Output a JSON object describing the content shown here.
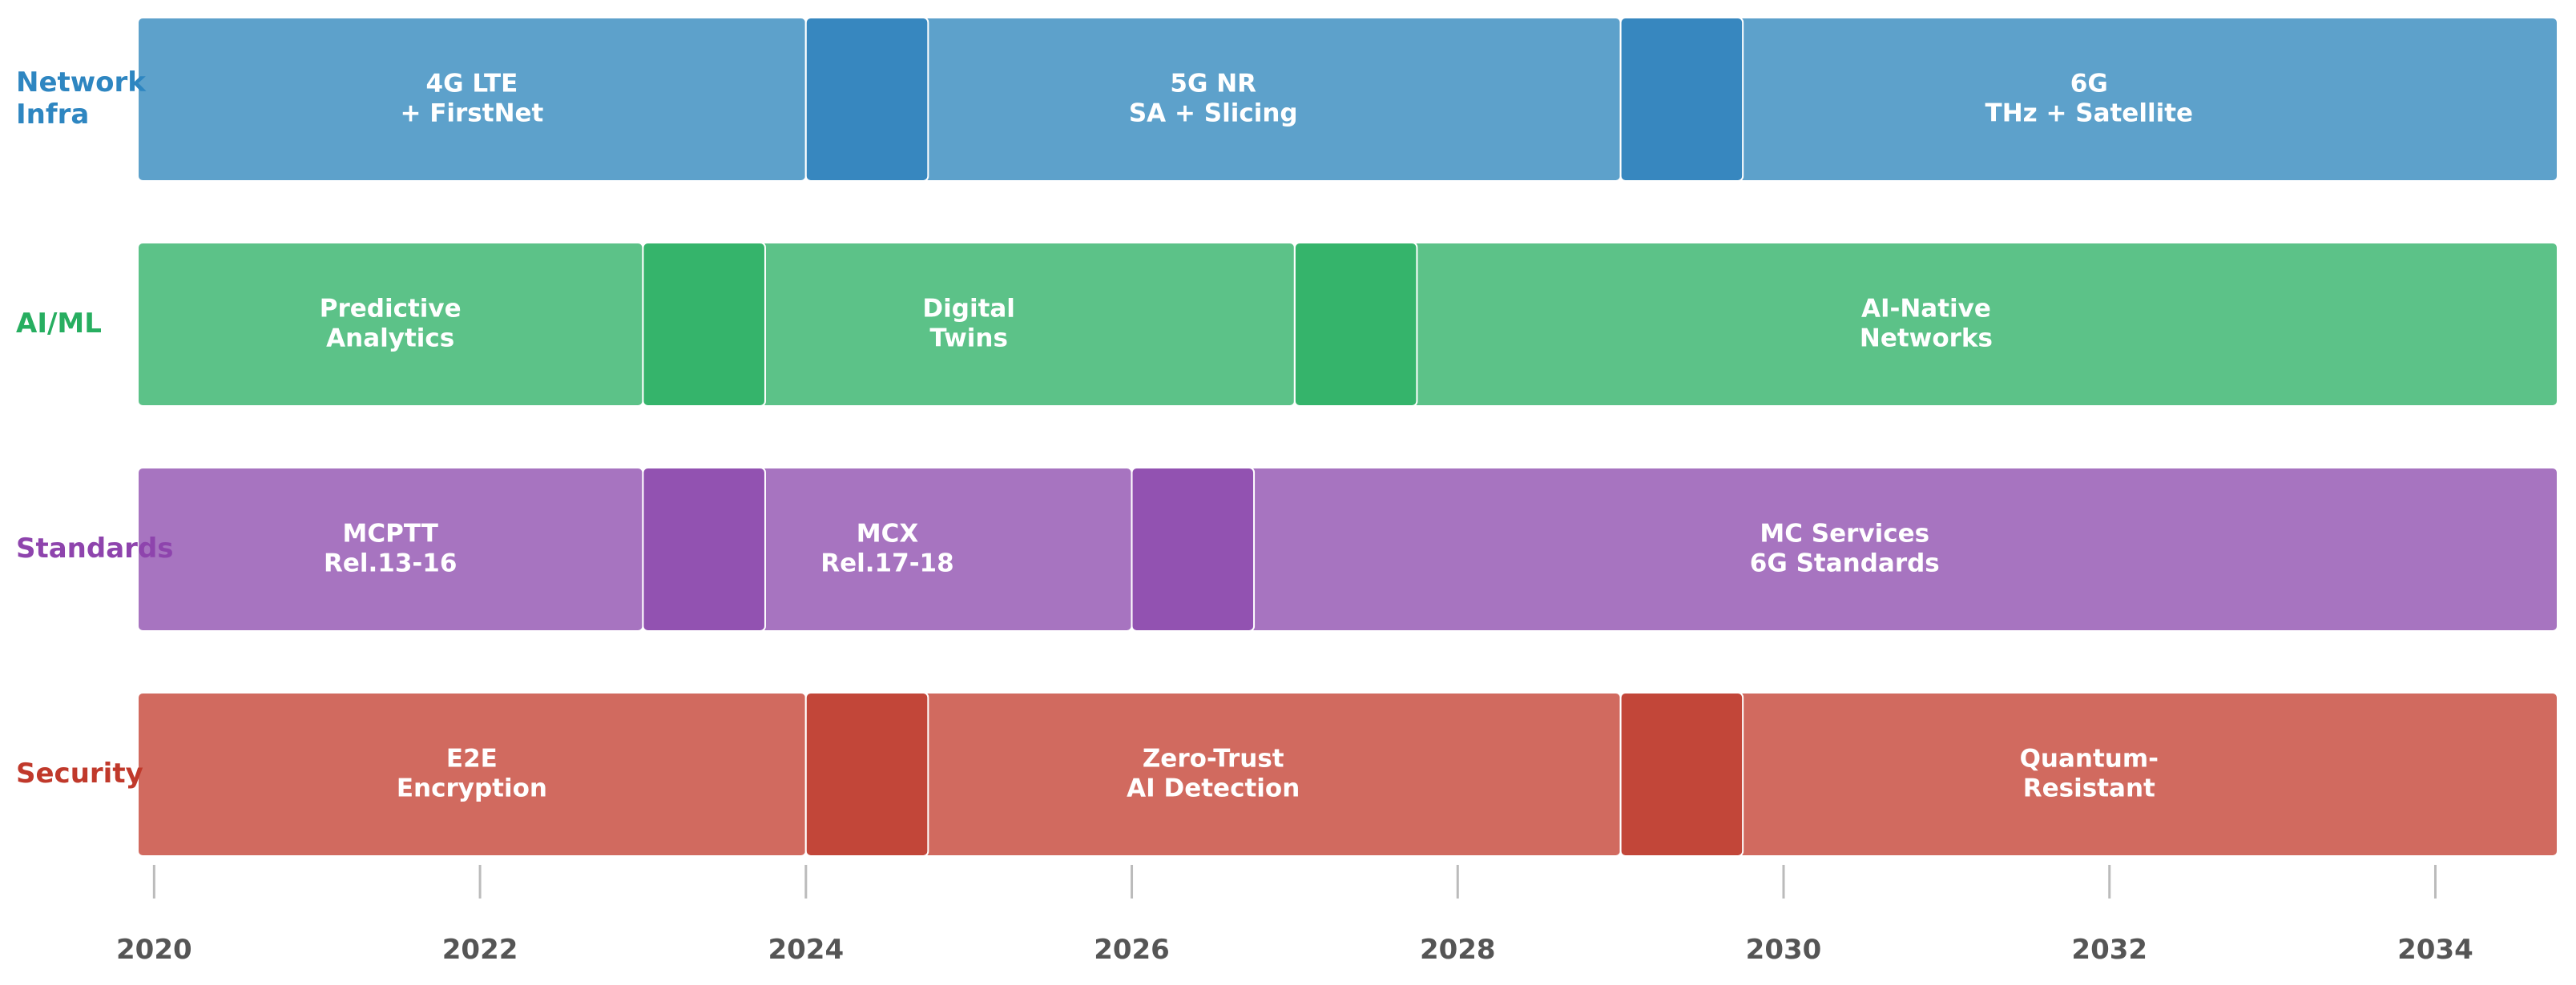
{
  "chart_data": {
    "type": "gantt",
    "title": "",
    "xlabel": "",
    "ylabel": "",
    "xlim": [
      2019.9,
      2034.75
    ],
    "x_ticks": [
      "2020",
      "2022",
      "2024",
      "2026",
      "2028",
      "2030",
      "2032",
      "2034"
    ],
    "grid": false,
    "legend": "none",
    "lanes": [
      {
        "label": "Network\nInfra",
        "color": "#5DA1CB",
        "overlap_color": "#3787BF",
        "label_color": "#2E86C1",
        "segments": [
          {
            "label": "4G LTE\n+ FirstNet",
            "start": 2019.9,
            "end": 2024.0
          },
          {
            "label": "5G NR\nSA + Slicing",
            "start": 2024.0,
            "end": 2029.0
          },
          {
            "label": "6G\nTHz + Satellite",
            "start": 2029.0,
            "end": 2034.75
          }
        ],
        "transitions": [
          {
            "start": 2024.0,
            "end": 2024.75
          },
          {
            "start": 2029.0,
            "end": 2029.75
          }
        ]
      },
      {
        "label": "AI/ML",
        "color": "#5CC288",
        "overlap_color": "#35B46B",
        "label_color": "#27AE60",
        "segments": [
          {
            "label": "Predictive\nAnalytics",
            "start": 2019.9,
            "end": 2023.0
          },
          {
            "label": "Digital\nTwins",
            "start": 2023.0,
            "end": 2027.0
          },
          {
            "label": "AI-Native\nNetworks",
            "start": 2027.0,
            "end": 2034.75
          }
        ],
        "transitions": [
          {
            "start": 2023.0,
            "end": 2023.75
          },
          {
            "start": 2027.0,
            "end": 2027.75
          }
        ]
      },
      {
        "label": "Standards",
        "color": "#A774C0",
        "overlap_color": "#9252B1",
        "label_color": "#8E44AD",
        "segments": [
          {
            "label": "MCPTT\nRel.13-16",
            "start": 2019.9,
            "end": 2023.0
          },
          {
            "label": "MCX\nRel.17-18",
            "start": 2023.0,
            "end": 2026.0
          },
          {
            "label": "MC Services\n6G Standards",
            "start": 2026.0,
            "end": 2034.75
          }
        ],
        "transitions": [
          {
            "start": 2023.0,
            "end": 2023.75
          },
          {
            "start": 2026.0,
            "end": 2026.75
          }
        ]
      },
      {
        "label": "Security",
        "color": "#D16A5F",
        "overlap_color": "#C24639",
        "label_color": "#C0392B",
        "segments": [
          {
            "label": "E2E\nEncryption",
            "start": 2019.9,
            "end": 2024.0
          },
          {
            "label": "Zero-Trust\nAI Detection",
            "start": 2024.0,
            "end": 2029.0
          },
          {
            "label": "Quantum-\nResistant",
            "start": 2029.0,
            "end": 2034.75
          }
        ],
        "transitions": [
          {
            "start": 2024.0,
            "end": 2024.75
          },
          {
            "start": 2029.0,
            "end": 2029.75
          }
        ]
      }
    ],
    "colors": {
      "tick_label": "#555555",
      "tick_line": "#BBBBBB",
      "segment_text": "#FFFFFF",
      "segment_border": "#FFFFFF"
    }
  }
}
